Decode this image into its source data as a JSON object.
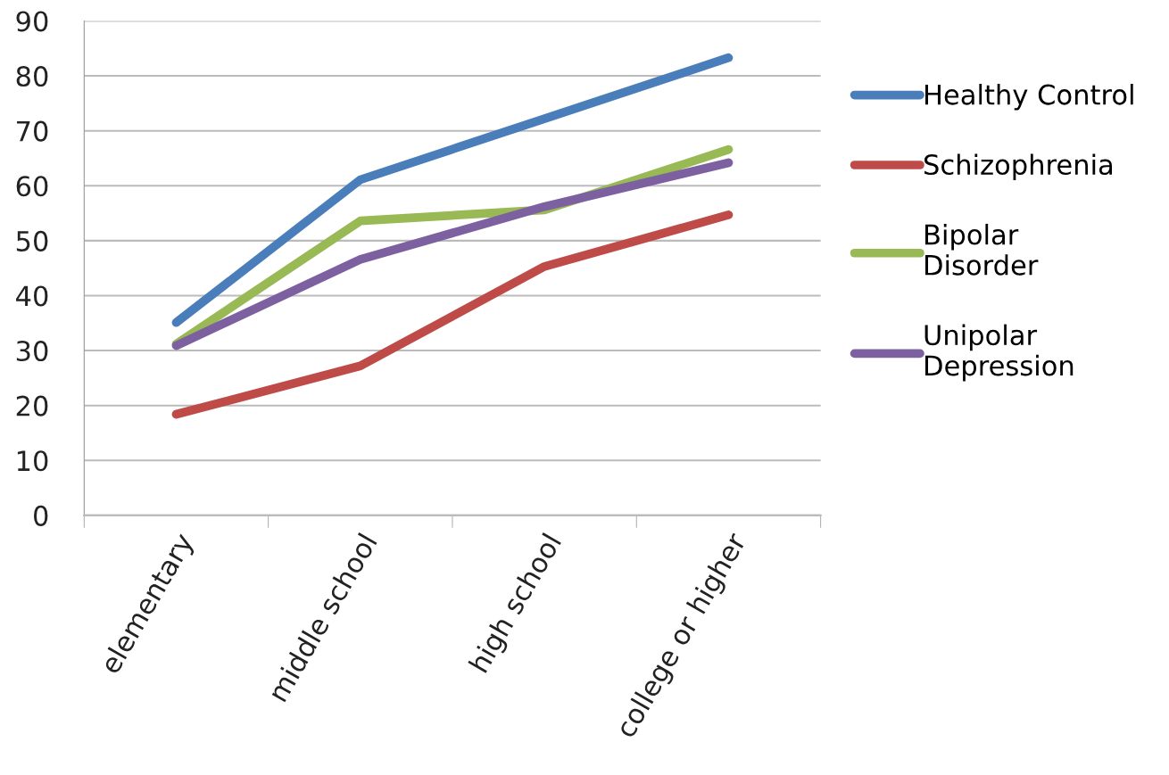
{
  "chart_data": {
    "type": "line",
    "categories": [
      "elementary",
      "middle school",
      "high school",
      "college or higher"
    ],
    "series": [
      {
        "name": "Healthy Control",
        "color": "#4a7ebb",
        "values": [
          35.1,
          61.1,
          72.2,
          83.3
        ]
      },
      {
        "name": "Schizophrenia",
        "color": "#be4b48",
        "values": [
          18.4,
          27.2,
          45.3,
          54.7
        ]
      },
      {
        "name": "Bipolar\nDisorder",
        "color": "#98b954",
        "values": [
          31.2,
          53.6,
          55.6,
          66.6
        ]
      },
      {
        "name": "Unipolar\nDepression",
        "color": "#7d60a0",
        "values": [
          30.9,
          46.6,
          56.2,
          64.2
        ]
      }
    ],
    "ylim": [
      0,
      90
    ],
    "yticks": [
      0,
      10,
      20,
      30,
      40,
      50,
      60,
      70,
      80,
      90
    ],
    "grid": "y",
    "legend": "right",
    "marker": "none",
    "line_style": "solid"
  }
}
